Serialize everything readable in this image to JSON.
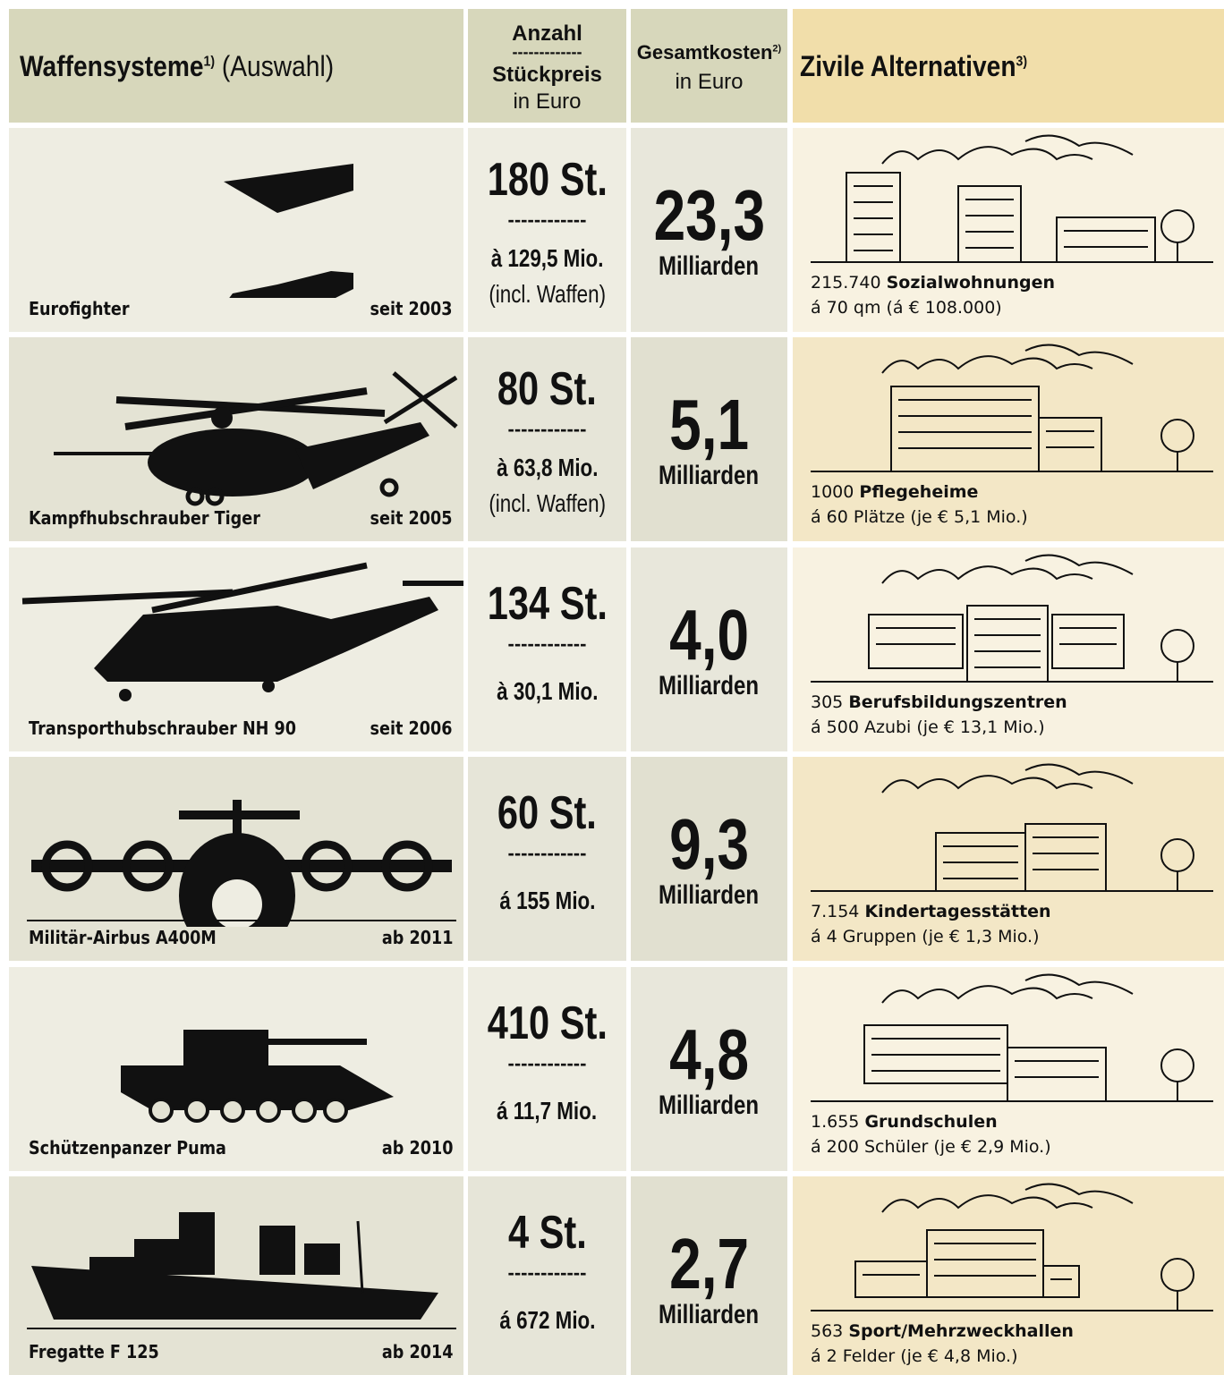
{
  "header": {
    "col1_title": "Waffensysteme",
    "col1_sup": "1)",
    "col1_sub": "(Auswahl)",
    "col2_line1": "Anzahl",
    "col2_sep": "-------------",
    "col2_line2": "Stückpreis",
    "col2_line3": "in Euro",
    "col3_line1": "Gesamtkosten",
    "col3_sup": "2)",
    "col3_line2": "in Euro",
    "col4_title": "Zivile Alternativen",
    "col4_sup": "3)"
  },
  "rows": [
    {
      "weapon": "Eurofighter",
      "since": "seit 2003",
      "count": "180 St.",
      "sep": "------------",
      "price": "à 129,5 Mio.",
      "note": "(incl. Waffen)",
      "total": "23,3",
      "unit": "Milliarden",
      "alt_count": "215.740",
      "alt_name": "Sozialwohnungen",
      "alt_detail": "á 70 qm (á € 108.000)"
    },
    {
      "weapon": "Kampfhubschrauber Tiger",
      "since": "seit 2005",
      "count": "80 St.",
      "sep": "------------",
      "price": "à 63,8 Mio.",
      "note": "(incl. Waffen)",
      "total": "5,1",
      "unit": "Milliarden",
      "alt_count": "1000",
      "alt_name": "Pflegeheime",
      "alt_detail": "á 60 Plätze (je € 5,1 Mio.)"
    },
    {
      "weapon": "Transporthubschrauber NH 90",
      "since": "seit 2006",
      "count": "134 St.",
      "sep": "------------",
      "price": "à 30,1 Mio.",
      "total": "4,0",
      "unit": "Milliarden",
      "alt_count": "305",
      "alt_name": "Berufsbildungszentren",
      "alt_detail": "á 500 Azubi (je € 13,1 Mio.)"
    },
    {
      "weapon": "Militär-Airbus A400M",
      "since": "ab 2011",
      "count": "60 St.",
      "sep": "------------",
      "price": "á 155 Mio.",
      "total": "9,3",
      "unit": "Milliarden",
      "alt_count": "7.154",
      "alt_name": "Kindertagesstätten",
      "alt_detail": "á 4 Gruppen (je € 1,3 Mio.)"
    },
    {
      "weapon": "Schützenpanzer Puma",
      "since": "ab 2010",
      "count": "410 St.",
      "sep": "------------",
      "price": "á 11,7 Mio.",
      "total": "4,8",
      "unit": "Milliarden",
      "alt_count": "1.655",
      "alt_name": "Grundschulen",
      "alt_detail": "á 200 Schüler (je € 2,9 Mio.)"
    },
    {
      "weapon": "Fregatte F 125",
      "since": "ab 2014",
      "count": "4 St.",
      "sep": "------------",
      "price": "á 672 Mio.",
      "total": "2,7",
      "unit": "Milliarden",
      "alt_count": "563",
      "alt_name": "Sport/Mehrzweckhallen",
      "alt_detail": "á 2 Felder (je € 4,8 Mio.)"
    }
  ]
}
